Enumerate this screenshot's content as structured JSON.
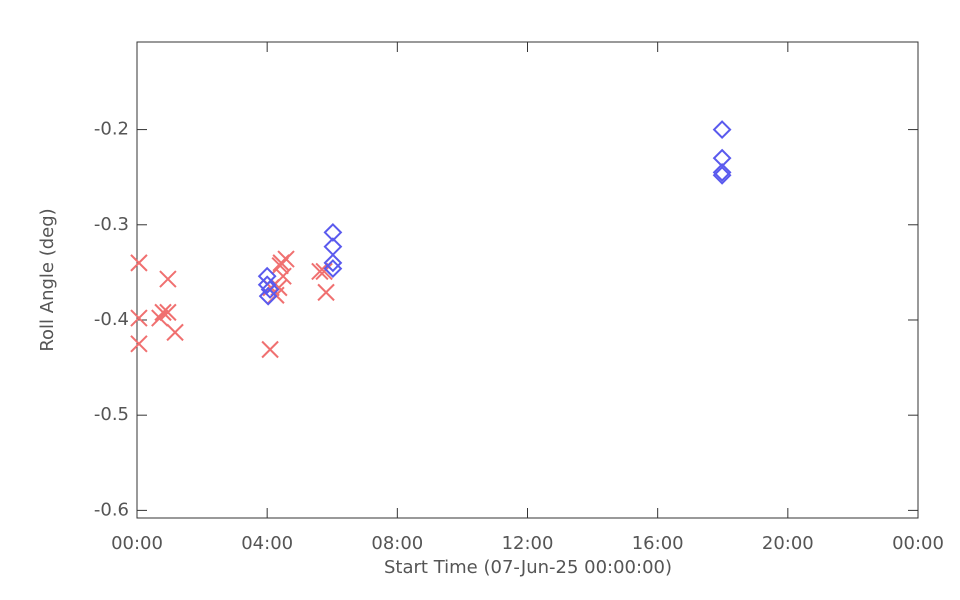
{
  "chart_data": {
    "type": "scatter",
    "xlabel": "Start Time (07-Jun-25 00:00:00)",
    "ylabel": "Roll Angle (deg)",
    "xlim": [
      0,
      24
    ],
    "xticks": [
      {
        "value": 0,
        "label": "00:00"
      },
      {
        "value": 4,
        "label": "04:00"
      },
      {
        "value": 8,
        "label": "08:00"
      },
      {
        "value": 12,
        "label": "12:00"
      },
      {
        "value": 16,
        "label": "16:00"
      },
      {
        "value": 20,
        "label": "20:00"
      },
      {
        "value": 24,
        "label": "00:00"
      }
    ],
    "ylim": [
      -0.608,
      -0.108
    ],
    "yticks": [
      -0.6,
      -0.5,
      -0.4,
      -0.3,
      -0.2
    ],
    "series": [
      {
        "marker": "x",
        "color": "#f07070",
        "x": [
          0.06,
          0.06,
          0.06,
          0.7,
          0.8,
          0.95,
          0.95,
          1.17,
          4.09,
          4.12,
          4.27,
          4.36,
          4.43,
          4.49,
          4.58,
          4.4,
          5.62,
          5.75,
          5.81
        ],
        "values": [
          -0.34,
          -0.398,
          -0.425,
          -0.398,
          -0.392,
          -0.357,
          -0.392,
          -0.413,
          -0.431,
          -0.366,
          -0.374,
          -0.366,
          -0.34,
          -0.354,
          -0.336,
          -0.343,
          -0.349,
          -0.349,
          -0.371
        ]
      },
      {
        "marker": "diamond",
        "color": "#5a5aee",
        "x": [
          4.0,
          4.0,
          4.03,
          4.09,
          6.02,
          6.02,
          6.02,
          6.02,
          17.98,
          17.98,
          17.98,
          17.98
        ],
        "values": [
          -0.354,
          -0.363,
          -0.375,
          -0.368,
          -0.308,
          -0.323,
          -0.34,
          -0.346,
          -0.2,
          -0.23,
          -0.245,
          -0.248
        ]
      }
    ]
  }
}
